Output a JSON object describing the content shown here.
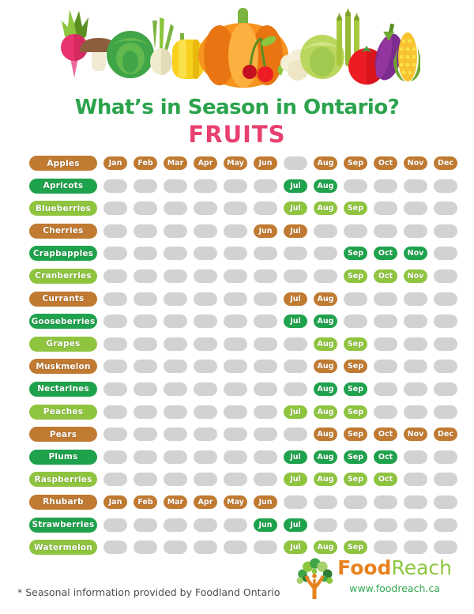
{
  "header": {
    "title": "What’s in Season in Ontario?",
    "subtitle": "FRUITS"
  },
  "chart_data": {
    "type": "heatmap",
    "title": "What’s in Season in Ontario?",
    "subtitle": "FRUITS",
    "columns": [
      "Jan",
      "Feb",
      "Mar",
      "Apr",
      "May",
      "Jun",
      "Jul",
      "Aug",
      "Sep",
      "Oct",
      "Nov",
      "Dec"
    ],
    "legend_note": "colored cell = month in season, gray cell = not in season",
    "rows": [
      {
        "fruit": "Apples",
        "color": "orange",
        "months": [
          "Jan",
          "Feb",
          "Mar",
          "Apr",
          "May",
          "Jun",
          "Aug",
          "Sep",
          "Oct",
          "Nov",
          "Dec"
        ]
      },
      {
        "fruit": "Apricots",
        "color": "dark-green",
        "months": [
          "Jul",
          "Aug"
        ]
      },
      {
        "fruit": "Blueberries",
        "color": "light-green",
        "months": [
          "Jul",
          "Aug",
          "Sep"
        ]
      },
      {
        "fruit": "Cherries",
        "color": "orange",
        "months": [
          "Jun",
          "Jul"
        ]
      },
      {
        "fruit": "Crapbapples",
        "color": "dark-green",
        "months": [
          "Sep",
          "Oct",
          "Nov"
        ]
      },
      {
        "fruit": "Cranberries",
        "color": "light-green",
        "months": [
          "Sep",
          "Oct",
          "Nov"
        ]
      },
      {
        "fruit": "Currants",
        "color": "orange",
        "months": [
          "Jul",
          "Aug"
        ]
      },
      {
        "fruit": "Gooseberries",
        "color": "dark-green",
        "months": [
          "Jul",
          "Aug"
        ]
      },
      {
        "fruit": "Grapes",
        "color": "light-green",
        "months": [
          "Aug",
          "Sep"
        ]
      },
      {
        "fruit": "Muskmelon",
        "color": "orange",
        "months": [
          "Aug",
          "Sep"
        ]
      },
      {
        "fruit": "Nectarines",
        "color": "dark-green",
        "months": [
          "Aug",
          "Sep"
        ]
      },
      {
        "fruit": "Peaches",
        "color": "light-green",
        "months": [
          "Jul",
          "Aug",
          "Sep"
        ]
      },
      {
        "fruit": "Pears",
        "color": "orange",
        "months": [
          "Aug",
          "Sep",
          "Oct",
          "Nov",
          "Dec"
        ]
      },
      {
        "fruit": "Plums",
        "color": "dark-green",
        "months": [
          "Jul",
          "Aug",
          "Sep",
          "Oct"
        ]
      },
      {
        "fruit": "Raspberries",
        "color": "light-green",
        "months": [
          "Jul",
          "Aug",
          "Sep",
          "Oct"
        ]
      },
      {
        "fruit": "Rhubarb",
        "color": "orange",
        "months": [
          "Jan",
          "Feb",
          "Mar",
          "Apr",
          "May",
          "Jun"
        ]
      },
      {
        "fruit": "Strawberries",
        "color": "dark-green",
        "months": [
          "Jun",
          "Jul"
        ]
      },
      {
        "fruit": "Watermelon",
        "color": "light-green",
        "months": [
          "Jul",
          "Aug",
          "Sep"
        ]
      }
    ]
  },
  "colors": {
    "orange": "#c07a31",
    "dark_green": "#1fa24c",
    "light_green": "#8fc43f",
    "empty_cell": "#d2d2d2",
    "title_green": "#2ba34c",
    "subtitle_pink": "#e8406f",
    "logo_food_orange": "#e8821e",
    "logo_reach_green": "#8dc63f",
    "logo_url_green": "#35a853"
  },
  "footer": {
    "footnote": "* Seasonal information provided by Foodland Ontario",
    "logo_food": "Food",
    "logo_reach": "Reach",
    "logo_url": "www.foodreach.ca"
  }
}
